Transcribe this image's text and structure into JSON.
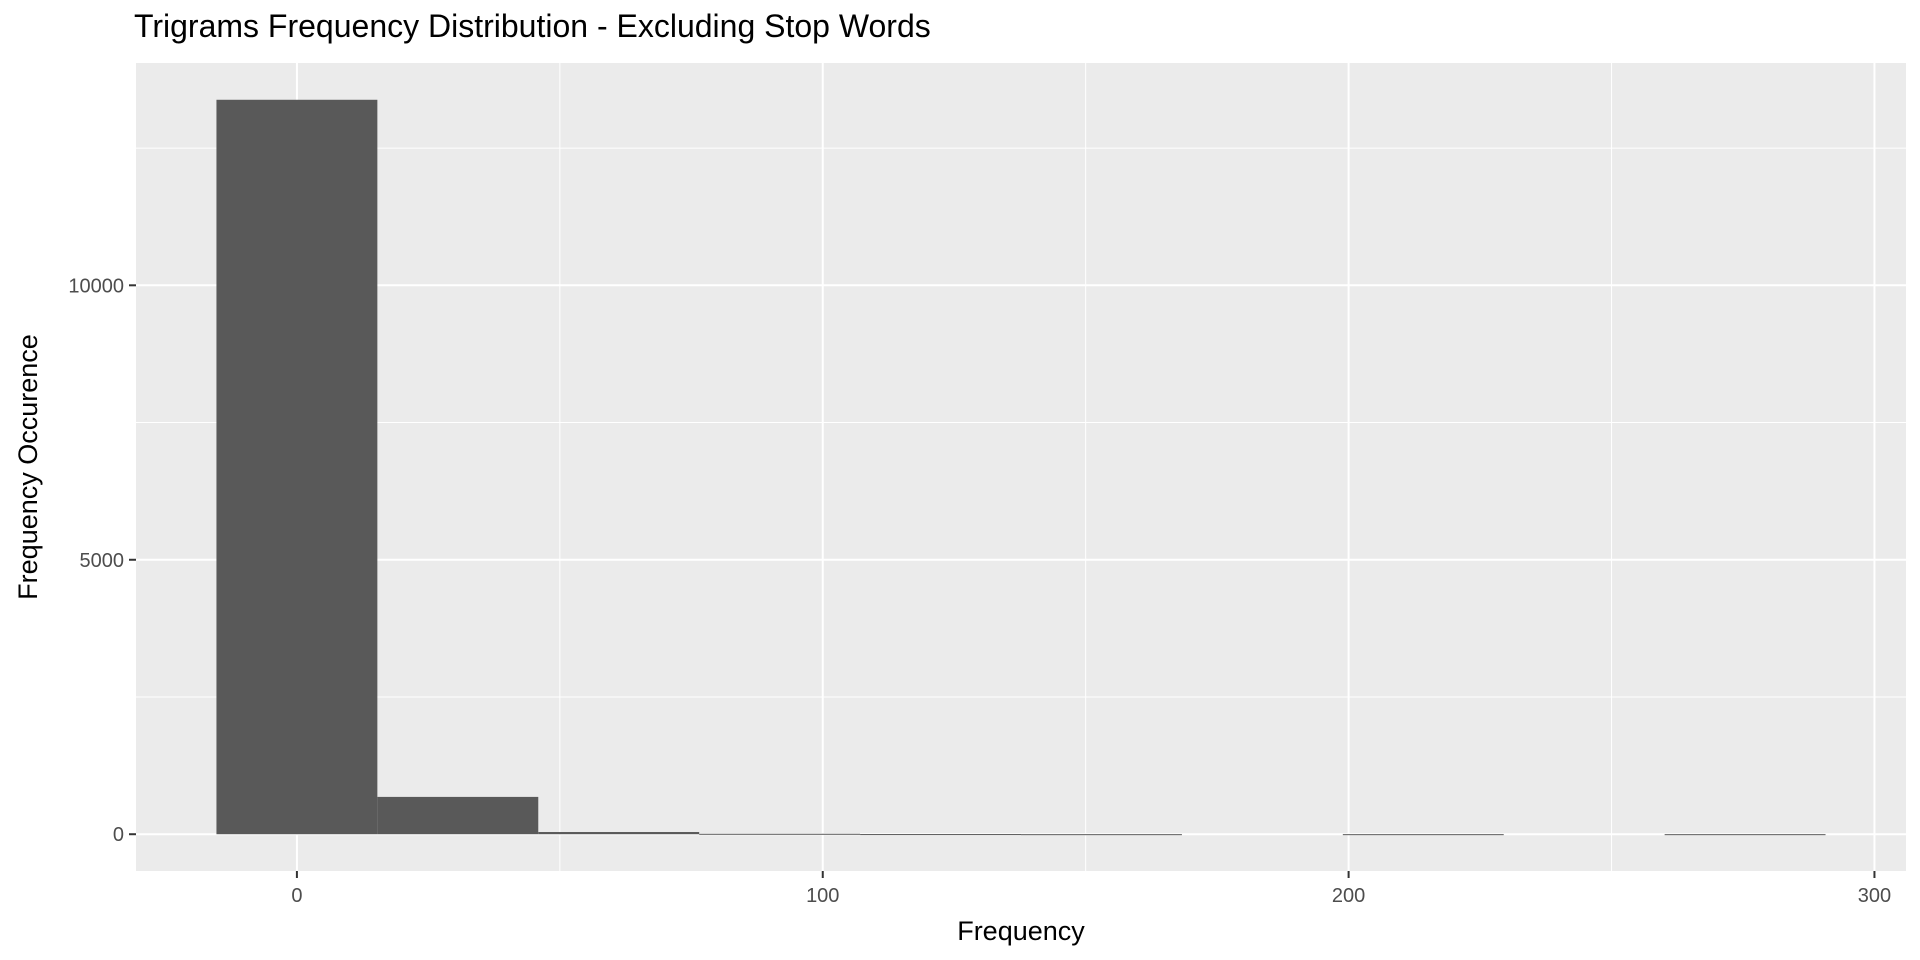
{
  "chart_data": {
    "type": "bar",
    "subtype": "histogram",
    "title": "Trigrams Frequency Distribution - Excluding Stop Words",
    "xlabel": "Frequency",
    "ylabel": "Frequency Occurence",
    "bins": [
      {
        "x_start": -15.3,
        "x_end": 15.3,
        "count": 13380
      },
      {
        "x_start": 15.3,
        "x_end": 45.9,
        "count": 680
      },
      {
        "x_start": 45.9,
        "x_end": 76.5,
        "count": 40
      },
      {
        "x_start": 76.5,
        "x_end": 107.1,
        "count": 8
      },
      {
        "x_start": 107.1,
        "x_end": 137.7,
        "count": 3
      },
      {
        "x_start": 137.7,
        "x_end": 168.3,
        "count": 1
      },
      {
        "x_start": 168.3,
        "x_end": 198.9,
        "count": 0
      },
      {
        "x_start": 198.9,
        "x_end": 229.5,
        "count": 1
      },
      {
        "x_start": 229.5,
        "x_end": 260.1,
        "count": 0
      },
      {
        "x_start": 260.1,
        "x_end": 290.7,
        "count": 1
      }
    ],
    "x_ticks": [
      0,
      100,
      200,
      300
    ],
    "y_ticks": [
      0,
      5000,
      10000
    ],
    "xlim": [
      -30.6,
      306
    ],
    "ylim": [
      -670,
      14050
    ],
    "colors": {
      "panel_background": "#EBEBEB",
      "grid_major": "#FFFFFF",
      "bar_fill": "#595959"
    },
    "grid": true,
    "legend": "none"
  }
}
